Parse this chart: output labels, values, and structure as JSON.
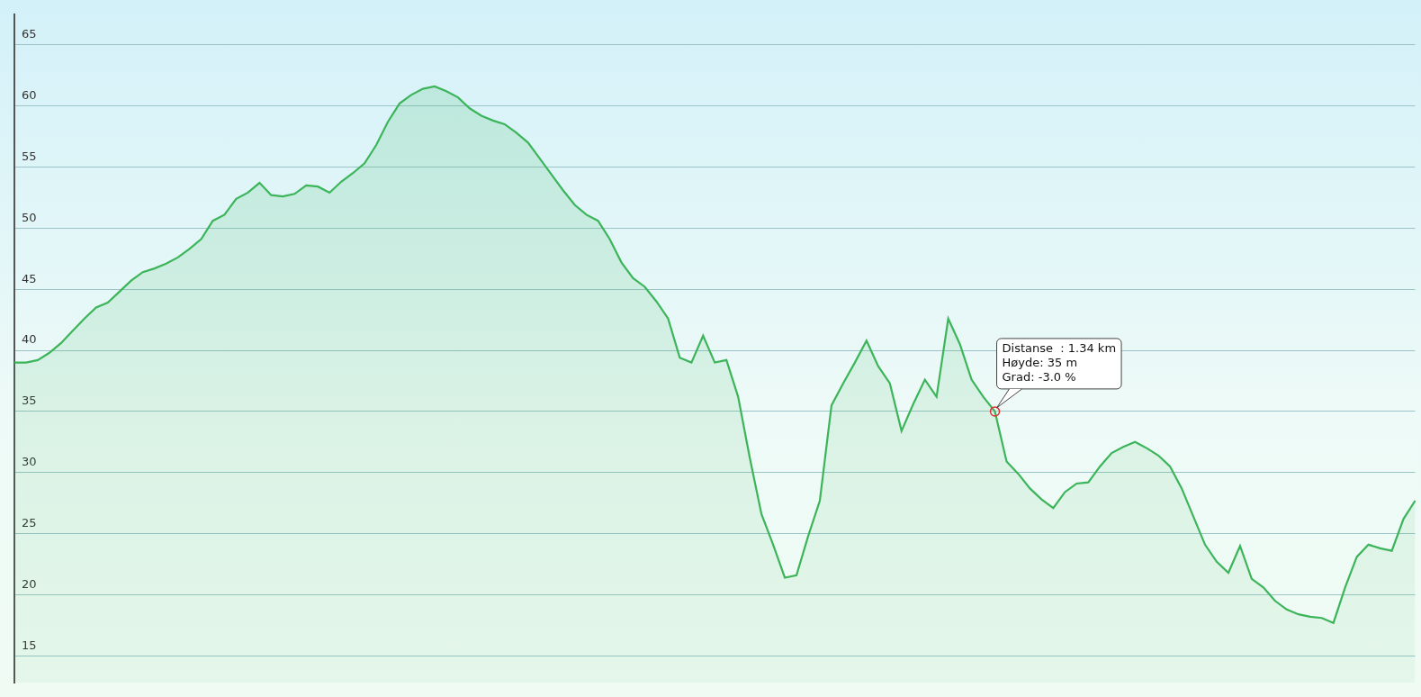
{
  "chart_data": {
    "type": "area",
    "categories": [
      null,
      null,
      null,
      null,
      null,
      null,
      null,
      null,
      null,
      null,
      null,
      null,
      null,
      null,
      null,
      null,
      null,
      null,
      null,
      null,
      null,
      null,
      null,
      null,
      null,
      null,
      null,
      null,
      null,
      null,
      null,
      null,
      null,
      null,
      null,
      null,
      null,
      null,
      null,
      null,
      null,
      null,
      null,
      null,
      null,
      null,
      null,
      null,
      null,
      null,
      null,
      null,
      null,
      null,
      null,
      null,
      null,
      null,
      null,
      null,
      null,
      null,
      null,
      null,
      null,
      null,
      null,
      null,
      null,
      null,
      null,
      null,
      null,
      null,
      null,
      null,
      null,
      null,
      null,
      null,
      null,
      null,
      null,
      null,
      null,
      null,
      null,
      null,
      null,
      null,
      null,
      null,
      null,
      null,
      null,
      null,
      null,
      null,
      null,
      null,
      null,
      null,
      null,
      null,
      null,
      null,
      null,
      null,
      null,
      null,
      null,
      null,
      null,
      null,
      null,
      null,
      null,
      null,
      null,
      null,
      null
    ],
    "series": [
      {
        "color": "#3cb55a",
        "values": [
          39.0,
          39.0,
          39.2,
          39.8,
          40.6,
          41.6,
          42.6,
          43.5,
          43.9,
          44.8,
          45.7,
          46.4,
          46.7,
          47.1,
          47.6,
          48.3,
          49.1,
          50.6,
          51.1,
          52.4,
          52.9,
          53.7,
          52.7,
          52.6,
          52.8,
          53.5,
          53.4,
          52.9,
          53.8,
          54.5,
          55.3,
          56.8,
          58.7,
          60.2,
          60.9,
          61.4,
          61.6,
          61.2,
          60.7,
          59.8,
          59.2,
          58.8,
          58.5,
          57.8,
          57.0,
          55.7,
          54.4,
          53.1,
          51.9,
          51.1,
          50.6,
          49.1,
          47.2,
          45.9,
          45.2,
          44.0,
          42.6,
          39.4,
          39.0,
          41.2,
          39.0,
          39.2,
          36.2,
          31.2,
          26.6,
          24.1,
          21.4,
          21.6,
          24.8,
          27.7,
          35.5,
          37.3,
          39.0,
          40.8,
          38.7,
          37.3,
          33.4,
          35.6,
          37.6,
          36.2,
          42.6,
          40.5,
          37.6,
          36.2,
          35.0,
          30.9,
          29.9,
          28.7,
          27.8,
          27.1,
          28.4,
          29.1,
          29.2,
          30.5,
          31.6,
          32.1,
          32.5,
          32.0,
          31.4,
          30.5,
          28.7,
          26.4,
          24.1,
          22.7,
          21.8,
          24.0,
          21.3,
          20.6,
          19.5,
          18.8,
          18.4,
          18.2,
          18.1,
          17.7,
          20.6,
          23.1,
          24.1,
          23.8,
          23.6,
          26.2,
          27.7
        ]
      },
      {
        "type": "scatter",
        "color": "#e03030",
        "marker": "circle",
        "values": [
          null,
          null,
          null,
          null,
          null,
          null,
          null,
          null,
          null,
          null,
          null,
          null,
          null,
          null,
          null,
          null,
          null,
          null,
          null,
          null,
          null,
          null,
          null,
          null,
          null,
          null,
          null,
          null,
          null,
          null,
          null,
          null,
          null,
          null,
          null,
          null,
          null,
          null,
          null,
          null,
          null,
          null,
          null,
          null,
          null,
          null,
          null,
          null,
          null,
          null,
          null,
          null,
          null,
          null,
          null,
          null,
          null,
          null,
          null,
          null,
          null,
          null,
          null,
          null,
          null,
          null,
          null,
          null,
          null,
          null,
          null,
          null,
          null,
          null,
          null,
          null,
          null,
          null,
          null,
          null,
          null,
          null,
          null,
          null,
          35.0,
          null,
          null,
          null,
          null,
          null,
          null,
          null,
          null,
          null,
          null,
          null,
          null,
          null,
          null,
          null,
          null,
          null,
          null,
          null,
          null,
          null,
          null,
          null,
          null,
          null,
          null,
          null,
          null,
          null,
          null,
          null,
          null,
          null,
          null,
          null,
          null
        ]
      }
    ],
    "ylim": [
      12.8,
      67.5
    ],
    "yticks": [
      15,
      20,
      25,
      30,
      35,
      40,
      45,
      50,
      55,
      60,
      65
    ],
    "grid": "y",
    "annotations": [
      "Distanse  : 1.34 km\nHøyde: 35 m\nGrad: -3.0 %"
    ]
  }
}
